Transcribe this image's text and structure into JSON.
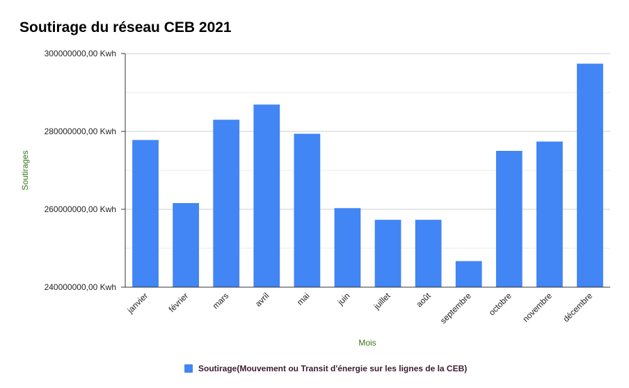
{
  "chart_data": {
    "type": "bar",
    "title": "Soutirage du réseau CEB 2021",
    "xlabel": "Mois",
    "ylabel": "Soutirages",
    "ylim": [
      240000000,
      300000000
    ],
    "yticks": [
      "240000000,00 Kwh",
      "260000000,00 Kwh",
      "280000000,00 Kwh",
      "300000000,00 Kwh"
    ],
    "ytick_values": [
      240000000,
      260000000,
      280000000,
      300000000
    ],
    "grid": true,
    "legend_position": "bottom",
    "categories": [
      "janvier",
      "février",
      "mars",
      "avril",
      "mai",
      "juin",
      "juillet",
      "août",
      "septembre",
      "octobre",
      "novembre",
      "décembre"
    ],
    "series": [
      {
        "name": "Soutirage(Mouvement ou Transit d'énergie sur les lignes de la CEB)",
        "color": "#4285f4",
        "values": [
          277800000,
          261600000,
          283000000,
          286900000,
          279400000,
          260300000,
          257300000,
          257300000,
          246700000,
          275000000,
          277400000,
          297400000
        ]
      }
    ]
  }
}
